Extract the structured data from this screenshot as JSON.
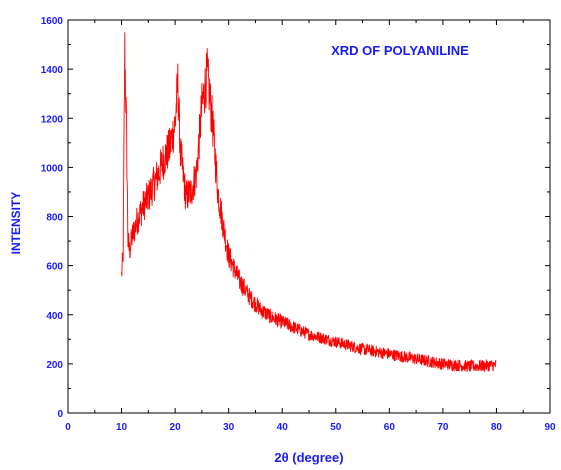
{
  "chart_data": {
    "type": "line",
    "title": "XRD OF POLYANILINE",
    "xlabel": "2θ (degree)",
    "ylabel": "INTENSITY",
    "xlim": [
      0,
      90
    ],
    "ylim": [
      0,
      1600
    ],
    "xticks": [
      0,
      10,
      20,
      30,
      40,
      50,
      60,
      70,
      80,
      90
    ],
    "yticks": [
      0,
      200,
      400,
      600,
      800,
      1000,
      1200,
      1400,
      1600
    ],
    "grid": false,
    "legend": "none",
    "series": [
      {
        "color": "#ff0000",
        "x": [
          10.0,
          10.3,
          10.6,
          10.9,
          11.2,
          11.5,
          12.0,
          13.0,
          14.0,
          15.0,
          16.0,
          17.0,
          18.0,
          19.0,
          20.0,
          20.5,
          21.0,
          22.0,
          23.0,
          24.0,
          25.0,
          26.0,
          27.0,
          28.0,
          29.0,
          30.0,
          32.0,
          34.0,
          36.0,
          38.0,
          40.0,
          45.0,
          50.0,
          55.0,
          60.0,
          65.0,
          70.0,
          75.0,
          80.0
        ],
        "y": [
          560,
          650,
          1480,
          1180,
          700,
          660,
          720,
          790,
          840,
          880,
          930,
          980,
          1040,
          1080,
          1180,
          1340,
          1060,
          880,
          900,
          980,
          1250,
          1380,
          1180,
          900,
          760,
          640,
          540,
          470,
          420,
          390,
          370,
          320,
          290,
          260,
          240,
          220,
          200,
          190,
          195
        ]
      }
    ]
  }
}
